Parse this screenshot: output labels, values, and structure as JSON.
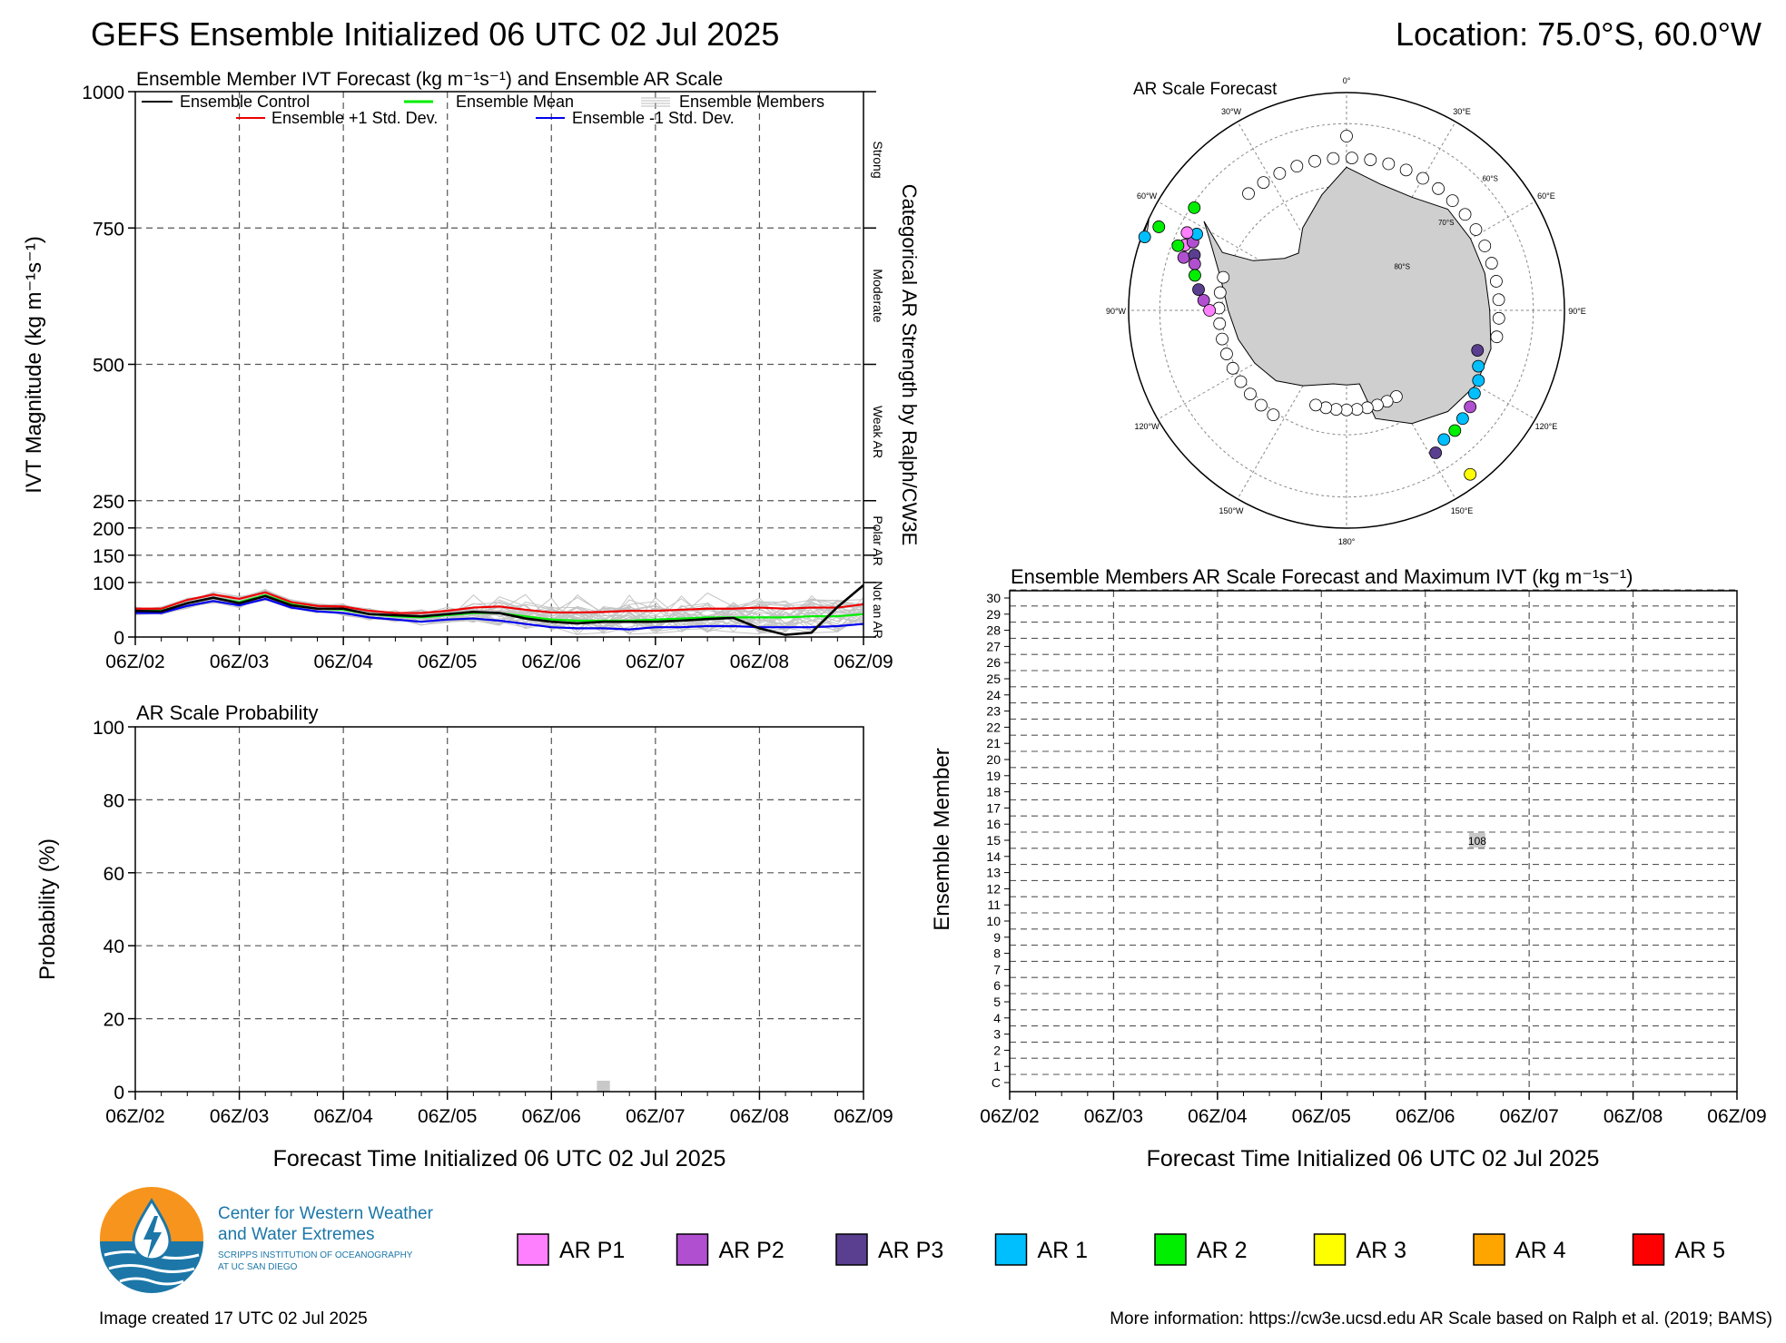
{
  "header": {
    "title": "GEFS Ensemble Initialized 06 UTC 02 Jul 2025",
    "location": "Location: 75.0°S, 60.0°W"
  },
  "x_ticks": [
    "06Z/02",
    "06Z/03",
    "06Z/04",
    "06Z/05",
    "06Z/06",
    "06Z/07",
    "06Z/08",
    "06Z/09"
  ],
  "x_axis_label": "Forecast Time Initialized 06 UTC 02 Jul 2025",
  "ivt_panel": {
    "title": "Ensemble Member IVT Forecast (kg m⁻¹s⁻¹) and Ensemble AR Scale",
    "ylabel": "IVT Magnitude (kg m⁻¹s⁻¹)",
    "right_label": "Categorical AR Strength by Ralph/CW3E",
    "categories": [
      "Strong",
      "Moderate",
      "Weak AR",
      "Polar AR",
      "Not an AR"
    ],
    "legend": {
      "control": "Ensemble Control",
      "mean": "Ensemble Mean",
      "members": "Ensemble Members",
      "plus": "Ensemble +1 Std. Dev.",
      "minus": "Ensemble -1 Std. Dev."
    },
    "colors": {
      "control": "#000000",
      "mean": "#00ee00",
      "members": "#bbbbbb",
      "plus": "#ee0000",
      "minus": "#0000ee"
    }
  },
  "prob_panel": {
    "title": "AR Scale Probability",
    "ylabel": "Probability (%)"
  },
  "member_panel": {
    "title": "Ensemble Members AR Scale Forecast and Maximum IVT (kg m⁻¹s⁻¹)",
    "ylabel": "Ensemble Member",
    "members": [
      "C",
      "1",
      "2",
      "3",
      "4",
      "5",
      "6",
      "7",
      "8",
      "9",
      "10",
      "11",
      "12",
      "13",
      "14",
      "15",
      "16",
      "17",
      "18",
      "19",
      "20",
      "21",
      "22",
      "23",
      "24",
      "25",
      "26",
      "27",
      "28",
      "29",
      "30"
    ],
    "marker_label": "108"
  },
  "map_panel": {
    "title": "AR Scale Forecast",
    "lon_labels": [
      "0°",
      "30°E",
      "60°E",
      "90°E",
      "120°E",
      "150°E",
      "180°",
      "150°W",
      "120°W",
      "90°W",
      "60°W",
      "30°W"
    ],
    "lat_labels": [
      "60°S",
      "70°S",
      "80°S"
    ]
  },
  "ar_legend": [
    {
      "label": "AR P1",
      "color": "#ff80ff"
    },
    {
      "label": "AR P2",
      "color": "#b050d0"
    },
    {
      "label": "AR P3",
      "color": "#5a3f90"
    },
    {
      "label": "AR 1",
      "color": "#00bfff"
    },
    {
      "label": "AR 2",
      "color": "#00ee00"
    },
    {
      "label": "AR 3",
      "color": "#ffff00"
    },
    {
      "label": "AR 4",
      "color": "#ffa500"
    },
    {
      "label": "AR 5",
      "color": "#ff0000"
    }
  ],
  "logo": {
    "line1": "Center for Western Weather",
    "line2": "and Water Extremes",
    "line3": "SCRIPPS INSTITUTION OF OCEANOGRAPHY",
    "line4": "AT UC SAN DIEGO"
  },
  "footer": {
    "created": "Image created 17 UTC 02 Jul 2025",
    "info": "More information: https://cw3e.ucsd.edu AR Scale based on Ralph et al. (2019; BAMS)"
  },
  "chart_data": [
    {
      "type": "line",
      "title": "Ensemble Member IVT Forecast (kg m⁻¹s⁻¹) and Ensemble AR Scale",
      "ylabel": "IVT Magnitude (kg m⁻¹s⁻¹)",
      "y_ticks": [
        0,
        100,
        150,
        200,
        250,
        500,
        750,
        1000
      ],
      "ylim": [
        0,
        1000
      ],
      "x_hours": [
        0,
        6,
        12,
        18,
        24,
        30,
        36,
        42,
        48,
        54,
        60,
        66,
        72,
        78,
        84,
        90,
        96,
        102,
        108,
        114,
        120,
        126,
        132,
        138,
        144,
        150,
        156,
        162,
        168
      ],
      "series": [
        {
          "name": "Ensemble Control",
          "values": [
            48,
            47,
            62,
            72,
            62,
            75,
            58,
            52,
            52,
            42,
            40,
            38,
            42,
            46,
            44,
            34,
            28,
            25,
            28,
            28,
            28,
            30,
            33,
            35,
            16,
            4,
            8,
            55,
            95
          ]
        },
        {
          "name": "Ensemble Mean",
          "values": [
            48,
            48,
            62,
            72,
            64,
            77,
            60,
            52,
            50,
            42,
            38,
            36,
            40,
            44,
            44,
            38,
            32,
            30,
            30,
            30,
            32,
            34,
            36,
            36,
            36,
            36,
            38,
            38,
            42
          ]
        },
        {
          "name": "Ensemble +1 Std. Dev.",
          "values": [
            52,
            52,
            68,
            78,
            70,
            82,
            64,
            57,
            56,
            48,
            44,
            44,
            48,
            54,
            56,
            50,
            45,
            45,
            46,
            48,
            48,
            50,
            52,
            52,
            54,
            52,
            54,
            54,
            60
          ]
        },
        {
          "name": "Ensemble -1 Std. Dev.",
          "values": [
            44,
            44,
            57,
            66,
            58,
            70,
            54,
            47,
            44,
            36,
            32,
            28,
            32,
            34,
            30,
            24,
            18,
            16,
            16,
            14,
            18,
            18,
            20,
            20,
            18,
            18,
            18,
            20,
            24
          ]
        }
      ]
    },
    {
      "type": "bar",
      "title": "AR Scale Probability",
      "ylabel": "Probability (%)",
      "ylim": [
        0,
        100
      ],
      "bars": [
        {
          "hour": 108,
          "value": 3,
          "color": "#c8c8c8"
        }
      ]
    },
    {
      "type": "scatter",
      "title": "Ensemble Members AR Scale Forecast and Maximum IVT (kg m⁻¹s⁻¹)",
      "points": [
        {
          "member": "15",
          "hour": 108,
          "value": 108,
          "color": "#c8c8c8"
        }
      ]
    }
  ]
}
